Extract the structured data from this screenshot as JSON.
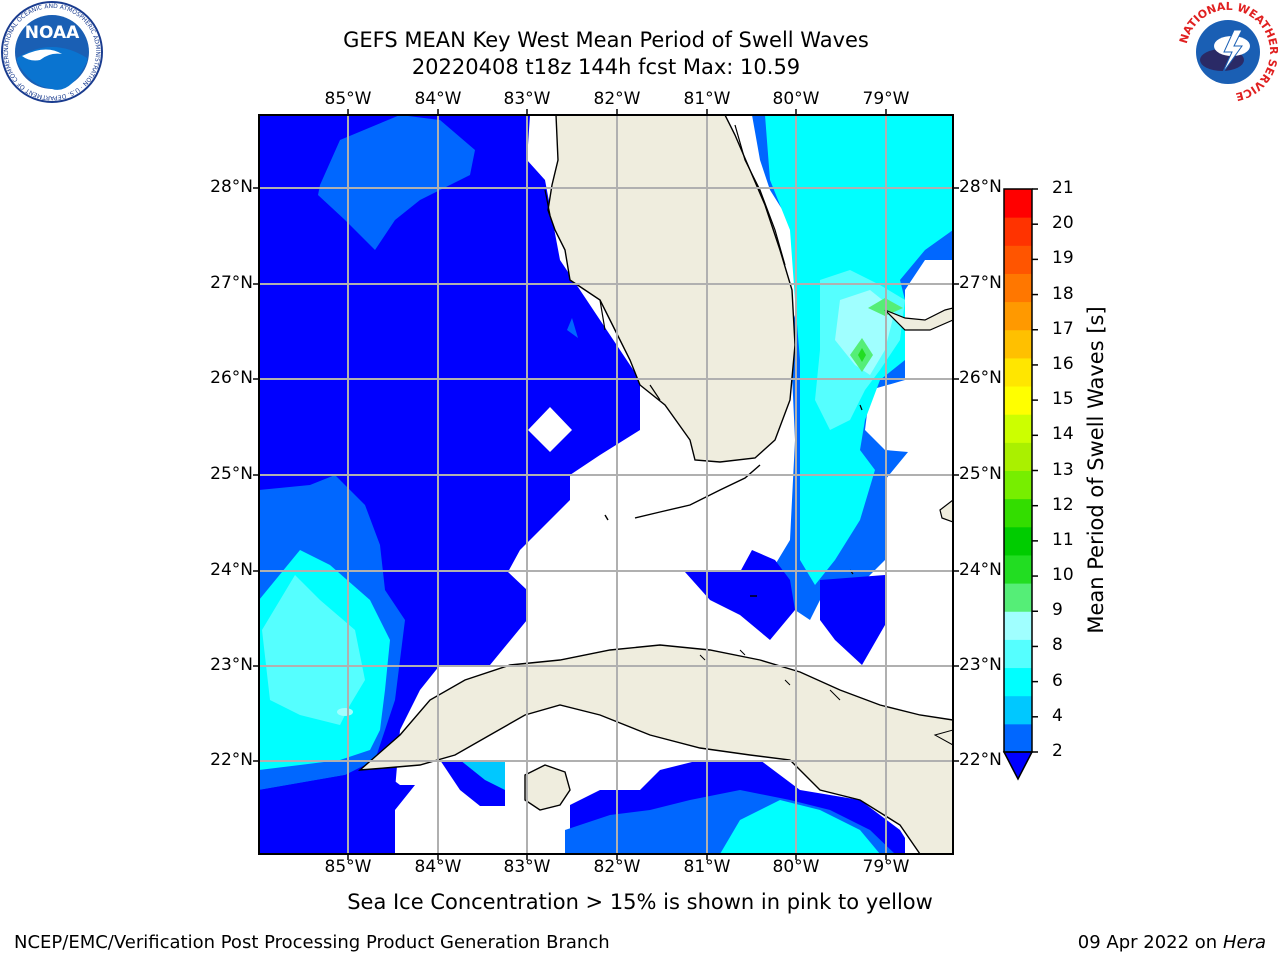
{
  "title": {
    "line1": "GEFS MEAN Key West Mean Period of Swell Waves",
    "line2": "20220408 t18z 144h fcst   Max: 10.59"
  },
  "map": {
    "lon_labels": [
      "85°W",
      "84°W",
      "83°W",
      "82°W",
      "81°W",
      "80°W",
      "79°W"
    ],
    "lat_labels": [
      "28°N",
      "27°N",
      "26°N",
      "25°N",
      "24°N",
      "23°N",
      "22°N"
    ],
    "land_color": "#efedde",
    "grid_color": "#b0b0b0"
  },
  "colorbar": {
    "label": "Mean Period of Swell Waves [s]",
    "ticks": [
      "21",
      "20",
      "19",
      "18",
      "17",
      "16",
      "15",
      "14",
      "13",
      "12",
      "11",
      "10",
      "9",
      "8",
      "6",
      "4",
      "2"
    ],
    "colors_bottom_to_top": [
      "#0067ff",
      "#00c8ff",
      "#00ffff",
      "#55ffff",
      "#a0ffff",
      "#55ee77",
      "#22dd22",
      "#00cc00",
      "#33dd00",
      "#77ee00",
      "#aaf000",
      "#ccff00",
      "#ffff00",
      "#ffe600",
      "#ffc000",
      "#ff9900",
      "#ff7700",
      "#ff5500",
      "#ff3300",
      "#ff0000"
    ]
  },
  "logos": {
    "left": {
      "icon": "noaa-logo",
      "text": "NOAA",
      "ring_text": "NATIONAL OCEANIC AND ATMOSPHERIC ADMINISTRATION · U.S. DEPARTMENT OF COMMERCE"
    },
    "right": {
      "icon": "nws-logo",
      "ring_text": "NATIONAL WEATHER SERVICE"
    }
  },
  "caption": "Sea Ice Concentration > 15% is shown in pink to yellow",
  "footer": {
    "left": "NCEP/EMC/Verification Post Processing Product Generation Branch",
    "right_prefix": "09 Apr 2022 on ",
    "right_host": "Hera"
  }
}
